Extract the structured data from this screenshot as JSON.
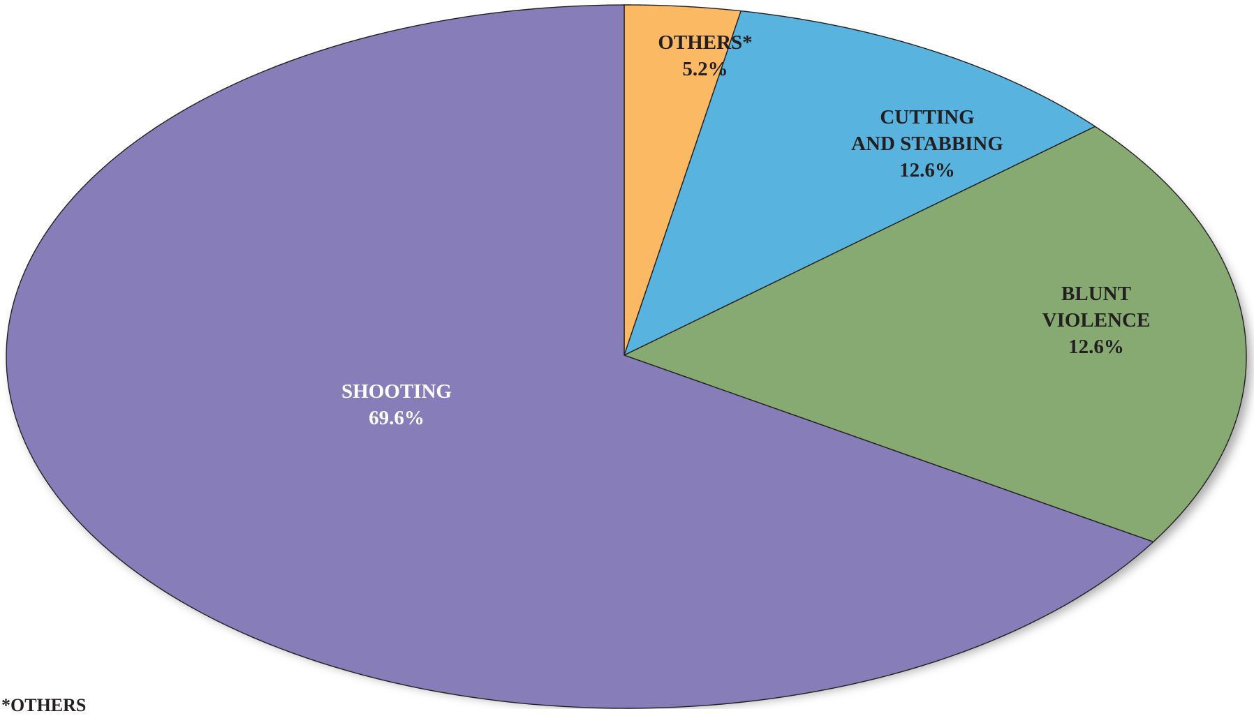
{
  "chart_data": {
    "type": "pie",
    "slices": [
      {
        "label_lines": [
          "OTHERS*"
        ],
        "value": 5.2,
        "value_label": "5.2%",
        "color": "#fbb964",
        "text_color": "#231f20"
      },
      {
        "label_lines": [
          "CUTTING",
          "AND STABBING"
        ],
        "value": 12.6,
        "value_label": "12.6%",
        "color": "#58b3df",
        "text_color": "#231f20"
      },
      {
        "label_lines": [
          "BLUNT",
          "VIOLENCE"
        ],
        "value": 12.6,
        "value_label": "12.6%",
        "color": "#86aa72",
        "text_color": "#231f20"
      },
      {
        "label_lines": [
          "SHOOTING"
        ],
        "value": 69.6,
        "value_label": "69.6%",
        "color": "#867db9",
        "text_color": "#ffffff"
      }
    ],
    "start": "12 o'clock",
    "direction": "clockwise",
    "legend": "none"
  },
  "footnote": "*OTHERS"
}
